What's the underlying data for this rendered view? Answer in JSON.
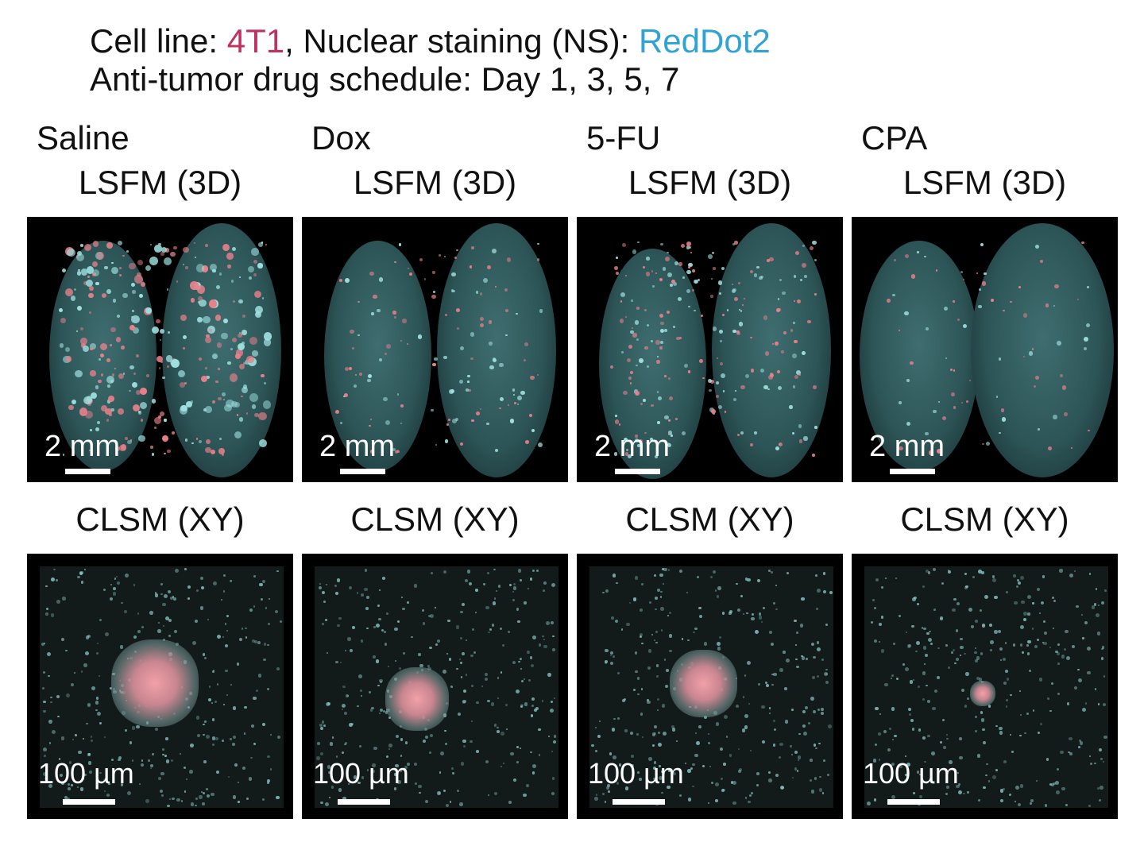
{
  "header": {
    "line1_prefix": "Cell line: ",
    "cell_line": "4T1",
    "line1_mid": ", Nuclear staining (NS): ",
    "stain": "RedDot2",
    "line2": "Anti-tumor drug schedule: Day 1, 3, 5, 7"
  },
  "colors": {
    "cell_line": "#c0315f",
    "stain": "#2fa3d6",
    "nuclear_signal": "#6fd6d6",
    "tumor_signal": "#f08a96"
  },
  "groups": [
    {
      "name": "Saline",
      "lsfm_label": "LSFM (3D)",
      "clsm_label": "CLSM (XY)",
      "lsfm_scale": "2 mm",
      "clsm_scale": "100 µm"
    },
    {
      "name": "Dox",
      "lsfm_label": "LSFM (3D)",
      "clsm_label": "CLSM (XY)",
      "lsfm_scale": "2 mm",
      "clsm_scale": "100 µm"
    },
    {
      "name": "5-FU",
      "lsfm_label": "LSFM (3D)",
      "clsm_label": "CLSM (XY)",
      "lsfm_scale": "2 mm",
      "clsm_scale": "100 µm"
    },
    {
      "name": "CPA",
      "lsfm_label": "LSFM (3D)",
      "clsm_label": "CLSM (XY)",
      "lsfm_scale": "2 mm",
      "clsm_scale": "100 µm"
    }
  ]
}
